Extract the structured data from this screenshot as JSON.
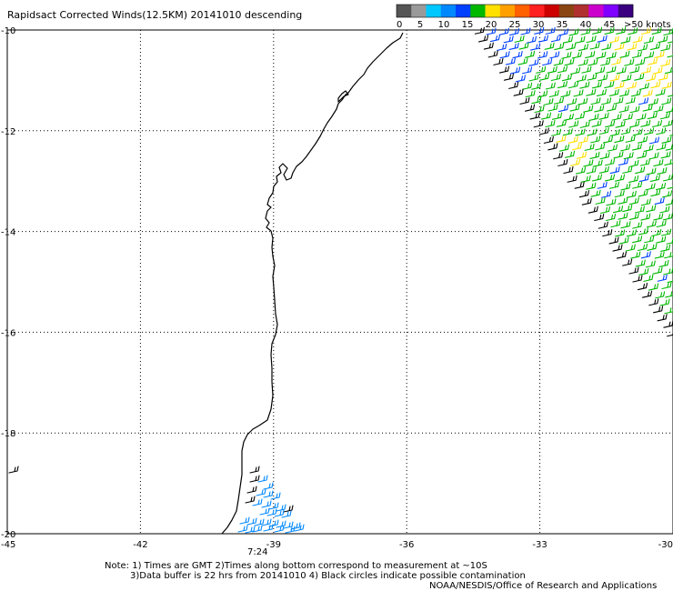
{
  "title": "Rapidsact Corrected Winds(12.5KM) 20141010 descending",
  "legend": {
    "labels": [
      "0",
      "5",
      "10",
      "15",
      "20",
      "25",
      "30",
      "35",
      "40",
      "45",
      ">50 knots"
    ],
    "colors": [
      "#555555",
      "#9a9a9a",
      "#00c8ff",
      "#0088ff",
      "#0040ff",
      "#00b800",
      "#ffe000",
      "#ffa000",
      "#ff6000",
      "#ff2020",
      "#cc0000",
      "#8b4513",
      "#b03030",
      "#cc00cc",
      "#7f00ff",
      "#3a0080"
    ]
  },
  "axes": {
    "lon_labels": [
      "-45",
      "-42",
      "-39",
      "-36",
      "-33",
      "-30"
    ],
    "lat_labels": [
      "-10",
      "-12",
      "-14",
      "-16",
      "-18",
      "-20"
    ],
    "lon_range": [
      -45,
      -30
    ],
    "lat_range": [
      -20,
      -10
    ],
    "grid": true
  },
  "time_label": "7:24",
  "notes": {
    "line1": "Note: 1) Times are GMT 2)Times along bottom correspond to measurement at ~10S",
    "line2": "3)Data buffer is 22 hrs from 20141010 4) Black circles indicate possible contamination",
    "line3": "NOAA/NESDIS/Office of Research and Applications"
  },
  "colors": {
    "barb_green": "#00b800",
    "barb_yellow": "#ffe000",
    "barb_blue": "#0040ff",
    "barb_lightblue": "#0088ff",
    "barb_black": "#000000",
    "time_label": "#800080"
  }
}
